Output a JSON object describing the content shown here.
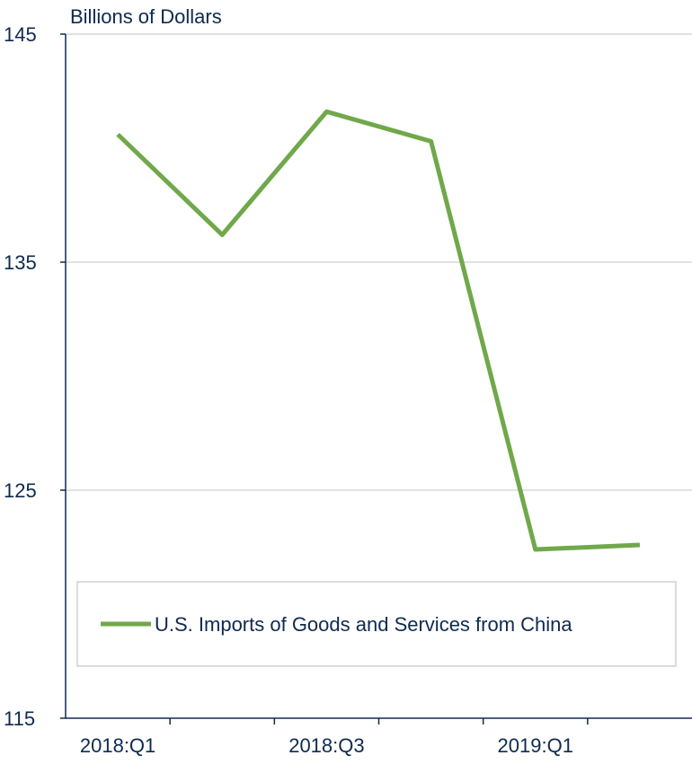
{
  "chart_data": {
    "type": "line",
    "y_label": "Billions of Dollars",
    "categories": [
      "2018:Q1",
      null,
      "2018:Q3",
      null,
      "2019:Q1",
      null
    ],
    "series": [
      {
        "name": "U.S. Imports of Goods and Services from China",
        "color": "#70a84a",
        "values": [
          140.6,
          136.2,
          141.6,
          140.3,
          122.4,
          122.6
        ]
      }
    ],
    "ylim": [
      115,
      145
    ],
    "yticks": [
      115,
      125,
      135,
      145
    ],
    "grid": true
  }
}
